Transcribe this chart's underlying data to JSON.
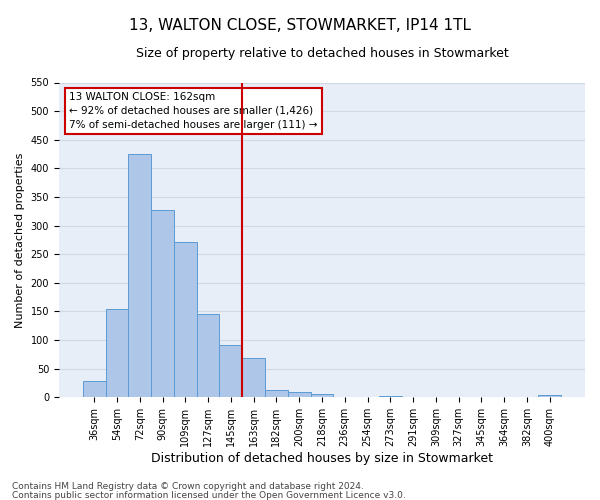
{
  "title": "13, WALTON CLOSE, STOWMARKET, IP14 1TL",
  "subtitle": "Size of property relative to detached houses in Stowmarket",
  "xlabel": "Distribution of detached houses by size in Stowmarket",
  "ylabel": "Number of detached properties",
  "bin_labels": [
    "36sqm",
    "54sqm",
    "72sqm",
    "90sqm",
    "109sqm",
    "127sqm",
    "145sqm",
    "163sqm",
    "182sqm",
    "200sqm",
    "218sqm",
    "236sqm",
    "254sqm",
    "273sqm",
    "291sqm",
    "309sqm",
    "327sqm",
    "345sqm",
    "364sqm",
    "382sqm",
    "400sqm"
  ],
  "bar_values": [
    28,
    155,
    425,
    328,
    272,
    145,
    92,
    68,
    12,
    10,
    5,
    0,
    0,
    3,
    0,
    0,
    0,
    0,
    0,
    0,
    4
  ],
  "bar_color": "#aec6e8",
  "bar_edge_color": "#5b9bd5",
  "bar_width": 1.0,
  "ylim": [
    0,
    550
  ],
  "yticks": [
    0,
    50,
    100,
    150,
    200,
    250,
    300,
    350,
    400,
    450,
    500,
    550
  ],
  "vline_x": 7,
  "vline_color": "#cc0000",
  "annotation_title": "13 WALTON CLOSE: 162sqm",
  "annotation_line1": "← 92% of detached houses are smaller (1,426)",
  "annotation_line2": "7% of semi-detached houses are larger (111) →",
  "annotation_box_color": "#cc0000",
  "grid_color": "#d0d8e8",
  "bg_color": "#e8eef7",
  "footer_line1": "Contains HM Land Registry data © Crown copyright and database right 2024.",
  "footer_line2": "Contains public sector information licensed under the Open Government Licence v3.0.",
  "title_fontsize": 11,
  "subtitle_fontsize": 9,
  "xlabel_fontsize": 9,
  "ylabel_fontsize": 8,
  "tick_fontsize": 7,
  "annotation_fontsize": 7.5,
  "footer_fontsize": 6.5
}
